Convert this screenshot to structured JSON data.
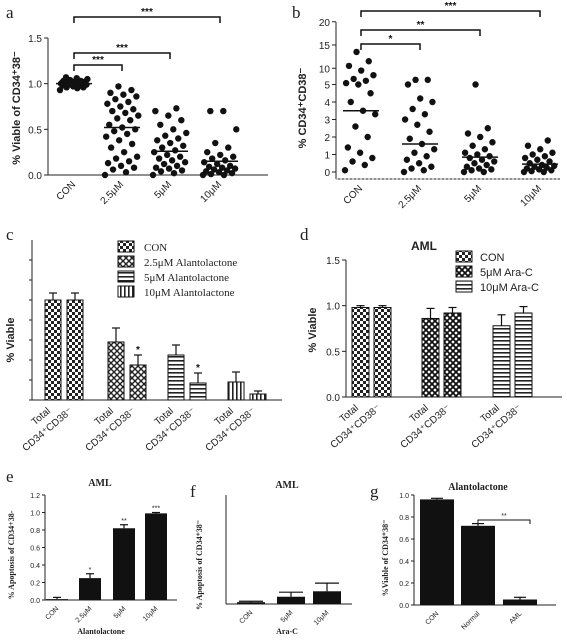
{
  "chart_data": [
    {
      "id": "a",
      "panel_label": "a",
      "type": "scatter",
      "ylabel": "% Viable of CD34⁺38⁻",
      "categories": [
        "CON",
        "2.5μM",
        "5μM",
        "10μM"
      ],
      "ylim": [
        0,
        1.5
      ],
      "yticks": [
        "0.0",
        "0.5",
        "1.0",
        "1.5"
      ],
      "means": [
        1.0,
        0.52,
        0.26,
        0.15
      ],
      "points": [
        [
          0.93,
          0.95,
          0.96,
          0.97,
          0.97,
          0.98,
          0.98,
          0.99,
          0.99,
          0.99,
          1.0,
          1.0,
          1.0,
          1.0,
          1.01,
          1.01,
          1.02,
          1.02,
          1.03,
          1.03,
          1.04,
          1.05,
          1.06,
          1.07,
          0.96,
          0.99,
          1.01,
          1.03
        ],
        [
          0.0,
          0.03,
          0.06,
          0.08,
          0.1,
          0.13,
          0.15,
          0.18,
          0.2,
          0.25,
          0.3,
          0.34,
          0.38,
          0.42,
          0.45,
          0.48,
          0.5,
          0.52,
          0.55,
          0.6,
          0.62,
          0.65,
          0.68,
          0.7,
          0.72,
          0.75,
          0.78,
          0.8,
          0.83,
          0.86,
          0.88,
          0.9,
          0.93,
          0.97
        ],
        [
          0.0,
          0.02,
          0.04,
          0.05,
          0.07,
          0.08,
          0.1,
          0.12,
          0.14,
          0.16,
          0.18,
          0.2,
          0.22,
          0.25,
          0.27,
          0.3,
          0.32,
          0.35,
          0.38,
          0.4,
          0.43,
          0.46,
          0.5,
          0.55,
          0.6,
          0.65,
          0.7,
          0.73
        ],
        [
          0.0,
          0.0,
          0.01,
          0.02,
          0.03,
          0.04,
          0.05,
          0.06,
          0.07,
          0.08,
          0.09,
          0.1,
          0.12,
          0.14,
          0.16,
          0.18,
          0.2,
          0.22,
          0.25,
          0.3,
          0.35,
          0.5,
          0.7,
          0.7
        ]
      ],
      "brackets": [
        {
          "from": 0,
          "to": 1,
          "label": "***"
        },
        {
          "from": 0,
          "to": 2,
          "label": "***"
        },
        {
          "from": 0,
          "to": 3,
          "label": "***"
        }
      ]
    },
    {
      "id": "b",
      "panel_label": "b",
      "type": "scatter",
      "ylabel": "% CD34⁺CD38⁻",
      "categories": [
        "CON",
        "2.5μM",
        "5μM",
        "10μM"
      ],
      "ylim": [
        -1,
        20
      ],
      "yticks": [
        "0",
        "1",
        "2",
        "3",
        "4",
        "5",
        "10",
        "15",
        "20"
      ],
      "means": [
        3.5,
        1.6,
        0.85,
        0.45
      ],
      "points": [
        [
          0.1,
          0.4,
          0.6,
          0.8,
          1.1,
          1.4,
          2.0,
          2.6,
          3.3,
          3.5,
          4.0,
          4.5,
          5.0,
          5.3,
          5.8,
          6.2,
          7.0,
          8.0,
          9.0,
          10.0,
          12.0
        ],
        [
          0.0,
          0.1,
          0.2,
          0.3,
          0.5,
          0.7,
          0.9,
          1.1,
          1.3,
          1.6,
          1.9,
          2.3,
          2.7,
          3.0,
          3.3,
          3.6,
          4.0,
          4.2,
          5.0,
          6.0,
          6.0
        ],
        [
          0.0,
          0.0,
          0.1,
          0.15,
          0.2,
          0.3,
          0.4,
          0.5,
          0.6,
          0.7,
          0.8,
          0.9,
          1.0,
          1.1,
          1.3,
          1.5,
          1.7,
          2.0,
          2.2,
          2.5,
          5.0
        ],
        [
          0.0,
          0.0,
          0.05,
          0.1,
          0.15,
          0.2,
          0.25,
          0.3,
          0.35,
          0.4,
          0.5,
          0.6,
          0.7,
          0.8,
          0.9,
          1.0,
          1.1,
          1.3,
          1.5,
          1.8
        ]
      ],
      "brackets": [
        {
          "from": 0,
          "to": 1,
          "label": "*"
        },
        {
          "from": 0,
          "to": 2,
          "label": "**"
        },
        {
          "from": 0,
          "to": 3,
          "label": "***"
        }
      ]
    },
    {
      "id": "c",
      "panel_label": "c",
      "type": "bar",
      "ylabel": "% Viable",
      "ylim": [
        0,
        1.6
      ],
      "series": [
        {
          "name": "CON",
          "pattern": "check"
        },
        {
          "name": "2.5μM Alantolactone",
          "pattern": "diamond"
        },
        {
          "name": "5μM Alantolactone",
          "pattern": "hline"
        },
        {
          "name": "10μM Alantolactone",
          "pattern": "vline"
        }
      ],
      "groups": [
        {
          "sub": 0,
          "labels": [
            "Total",
            "CD34⁺CD38⁻"
          ],
          "values": [
            1.0,
            1.0
          ],
          "errors": [
            0.07,
            0.07
          ],
          "stars": [
            "",
            ""
          ]
        },
        {
          "sub": 1,
          "labels": [
            "Total",
            "CD34⁺CD38⁻"
          ],
          "values": [
            0.58,
            0.35
          ],
          "errors": [
            0.14,
            0.1
          ],
          "stars": [
            "",
            "*"
          ]
        },
        {
          "sub": 2,
          "labels": [
            "Total",
            "CD34⁺CD38⁻"
          ],
          "values": [
            0.45,
            0.17
          ],
          "errors": [
            0.1,
            0.1
          ],
          "stars": [
            "",
            "*"
          ]
        },
        {
          "sub": 3,
          "labels": [
            "Total",
            "CD34⁺CD38⁻"
          ],
          "values": [
            0.18,
            0.06
          ],
          "errors": [
            0.1,
            0.03
          ],
          "stars": [
            "",
            ""
          ]
        }
      ]
    },
    {
      "id": "d",
      "panel_label": "d",
      "type": "bar",
      "title": "AML",
      "ylabel": "% Viable",
      "ylim": [
        0,
        1.5
      ],
      "yticks": [
        "0.0",
        "0.5",
        "1.0",
        "1.5"
      ],
      "series": [
        {
          "name": "CON",
          "pattern": "check"
        },
        {
          "name": "5μM Ara-C",
          "pattern": "cross"
        },
        {
          "name": "10μM Ara-C",
          "pattern": "hline"
        }
      ],
      "groups": [
        {
          "sub": 0,
          "labels": [
            "Total",
            "CD34⁺CD38⁻"
          ],
          "values": [
            0.98,
            0.98
          ],
          "errors": [
            0.02,
            0.02
          ]
        },
        {
          "sub": 1,
          "labels": [
            "Total",
            "CD34⁺CD38⁻"
          ],
          "values": [
            0.86,
            0.92
          ],
          "errors": [
            0.11,
            0.06
          ]
        },
        {
          "sub": 2,
          "labels": [
            "Total",
            "CD34⁺CD38⁻"
          ],
          "values": [
            0.78,
            0.92
          ],
          "errors": [
            0.12,
            0.07
          ]
        }
      ]
    },
    {
      "id": "e",
      "panel_label": "e",
      "type": "bar",
      "title": "AML",
      "ylabel": "% Apoptosis of CD34+38-",
      "xlabel": "Alantolactone",
      "ylim": [
        0,
        1.2
      ],
      "yticks": [
        "0.0",
        "0.2",
        "0.4",
        "0.6",
        "0.8",
        "1.0",
        "1.2"
      ],
      "categories": [
        "CON",
        "2.5μM",
        "5μM",
        "10μM"
      ],
      "values": [
        0.01,
        0.25,
        0.82,
        0.99
      ],
      "errors": [
        0.02,
        0.05,
        0.04,
        0.01
      ],
      "stars": [
        "",
        "*",
        "**",
        "***"
      ]
    },
    {
      "id": "f",
      "panel_label": "f",
      "type": "bar",
      "title": "AML",
      "ylabel": "% Apoptosis of CD34⁺38⁻",
      "xlabel": "Ara-C",
      "ylim": [
        0,
        1.2
      ],
      "categories": [
        "CON",
        "5μM",
        "10μM"
      ],
      "values": [
        0.02,
        0.08,
        0.14
      ],
      "errors": [
        0.01,
        0.05,
        0.09
      ]
    },
    {
      "id": "g",
      "panel_label": "g",
      "type": "bar",
      "title": "Alantolactone",
      "ylabel": "%Viable of CD34⁺38⁻",
      "ylim": [
        0,
        1.0
      ],
      "yticks": [
        "0.0",
        "0.2",
        "0.4",
        "0.6",
        "0.8",
        "1.0"
      ],
      "categories": [
        "CON",
        "Normal",
        "AML"
      ],
      "values": [
        0.96,
        0.72,
        0.05
      ],
      "errors": [
        0.01,
        0.02,
        0.02
      ],
      "brackets": [
        {
          "from": 1,
          "to": 2,
          "label": "**"
        }
      ]
    }
  ]
}
